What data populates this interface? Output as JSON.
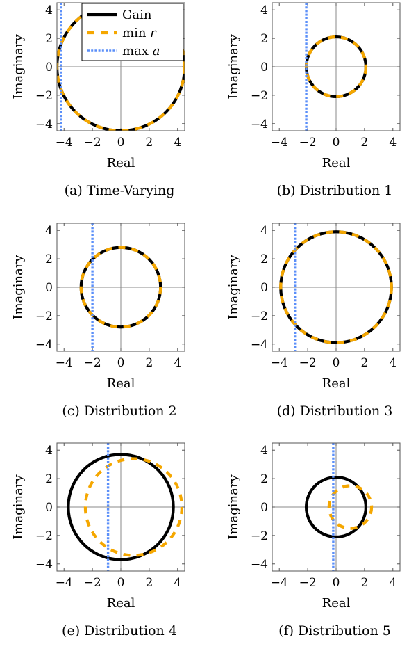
{
  "colors": {
    "gain": "#000000",
    "min_r": "#f5a700",
    "max_a": "#5b8ff9",
    "axis": "#888888",
    "frame": "#555555"
  },
  "legend": {
    "gain": "Gain",
    "min_r": "min r",
    "max_a": "max a"
  },
  "chart_data": [
    {
      "type": "line",
      "caption": "(a) Time-Varying",
      "xlabel": "Real",
      "ylabel": "Imaginary",
      "xlim": [
        -4.5,
        4.5
      ],
      "ylim": [
        -4.5,
        4.5
      ],
      "xticks": [
        -4,
        -2,
        0,
        2,
        4
      ],
      "yticks": [
        -4,
        -2,
        0,
        2,
        4
      ],
      "legend_position": "top-right",
      "series": [
        {
          "name": "Gain",
          "shape": "circle",
          "cx": 0,
          "cy": 0,
          "r": 4.5
        },
        {
          "name": "min r",
          "shape": "circle",
          "cx": 0,
          "cy": 0,
          "r": 4.5
        },
        {
          "name": "max a",
          "shape": "vline",
          "x": -4.2
        }
      ]
    },
    {
      "type": "line",
      "caption": "(b) Distribution 1",
      "xlabel": "Real",
      "ylabel": "Imaginary",
      "xlim": [
        -4.5,
        4.5
      ],
      "ylim": [
        -4.5,
        4.5
      ],
      "xticks": [
        -4,
        -2,
        0,
        2,
        4
      ],
      "yticks": [
        -4,
        -2,
        0,
        2,
        4
      ],
      "series": [
        {
          "name": "Gain",
          "shape": "circle",
          "cx": 0,
          "cy": 0,
          "r": 2.1
        },
        {
          "name": "min r",
          "shape": "circle",
          "cx": 0,
          "cy": 0,
          "r": 2.1
        },
        {
          "name": "max a",
          "shape": "vline",
          "x": -2.1
        }
      ]
    },
    {
      "type": "line",
      "caption": "(c) Distribution 2",
      "xlabel": "Real",
      "ylabel": "Imaginary",
      "xlim": [
        -4.5,
        4.5
      ],
      "ylim": [
        -4.5,
        4.5
      ],
      "xticks": [
        -4,
        -2,
        0,
        2,
        4
      ],
      "yticks": [
        -4,
        -2,
        0,
        2,
        4
      ],
      "series": [
        {
          "name": "Gain",
          "shape": "circle",
          "cx": 0,
          "cy": 0,
          "r": 2.8
        },
        {
          "name": "min r",
          "shape": "circle",
          "cx": 0,
          "cy": 0,
          "r": 2.8
        },
        {
          "name": "max a",
          "shape": "vline",
          "x": -2.0
        }
      ]
    },
    {
      "type": "line",
      "caption": "(d) Distribution 3",
      "xlabel": "Real",
      "ylabel": "Imaginary",
      "xlim": [
        -4.5,
        4.5
      ],
      "ylim": [
        -4.5,
        4.5
      ],
      "xticks": [
        -4,
        -2,
        0,
        2,
        4
      ],
      "yticks": [
        -4,
        -2,
        0,
        2,
        4
      ],
      "series": [
        {
          "name": "Gain",
          "shape": "circle",
          "cx": 0,
          "cy": 0,
          "r": 3.9
        },
        {
          "name": "min r",
          "shape": "circle",
          "cx": 0,
          "cy": 0,
          "r": 3.9
        },
        {
          "name": "max a",
          "shape": "vline",
          "x": -2.9
        }
      ]
    },
    {
      "type": "line",
      "caption": "(e) Distribution 4",
      "xlabel": "Real",
      "ylabel": "Imaginary",
      "xlim": [
        -4.5,
        4.5
      ],
      "ylim": [
        -4.5,
        4.5
      ],
      "xticks": [
        -4,
        -2,
        0,
        2,
        4
      ],
      "yticks": [
        -4,
        -2,
        0,
        2,
        4
      ],
      "series": [
        {
          "name": "Gain",
          "shape": "circle",
          "cx": 0,
          "cy": 0,
          "r": 3.7
        },
        {
          "name": "min r",
          "shape": "circle",
          "cx": 0.9,
          "cy": 0,
          "r": 3.4
        },
        {
          "name": "max a",
          "shape": "vline",
          "x": -0.9
        }
      ]
    },
    {
      "type": "line",
      "caption": "(f) Distribution 5",
      "xlabel": "Real",
      "ylabel": "Imaginary",
      "xlim": [
        -4.5,
        4.5
      ],
      "ylim": [
        -4.5,
        4.5
      ],
      "xticks": [
        -4,
        -2,
        0,
        2,
        4
      ],
      "yticks": [
        -4,
        -2,
        0,
        2,
        4
      ],
      "series": [
        {
          "name": "Gain",
          "shape": "circle",
          "cx": 0,
          "cy": 0,
          "r": 2.1
        },
        {
          "name": "min r",
          "shape": "circle",
          "cx": 1.0,
          "cy": 0,
          "r": 1.5
        },
        {
          "name": "max a",
          "shape": "vline",
          "x": -0.2
        }
      ]
    }
  ]
}
